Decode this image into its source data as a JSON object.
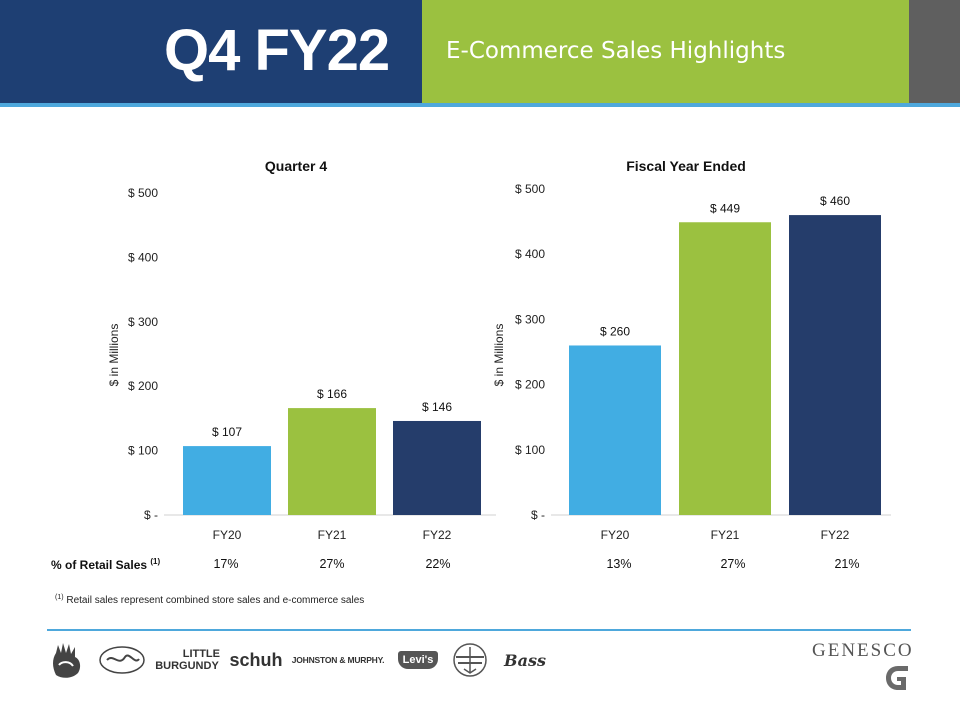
{
  "header": {
    "title": "Q4 FY22",
    "subtitle": "E-Commerce Sales Highlights"
  },
  "colors": {
    "navy": "#1e3f73",
    "green": "#9bc140",
    "gray": "#5f5f5f",
    "light_blue": "#41ade3",
    "bar_navy": "#253d6b"
  },
  "chart_data": [
    {
      "type": "bar",
      "title": "Quarter 4",
      "ylabel": "$ in Millions",
      "xlabel": "",
      "categories": [
        "FY20",
        "FY21",
        "FY22"
      ],
      "values": [
        107,
        166,
        146
      ],
      "value_labels": [
        "$ 107",
        "$ 166",
        "$ 146"
      ],
      "bar_colors": [
        "#41ade3",
        "#9bc140",
        "#253d6b"
      ],
      "ylim": [
        0,
        500
      ],
      "y_ticks": [
        0,
        100,
        200,
        300,
        400,
        500
      ],
      "y_tick_labels": [
        "$ -",
        "$ 100",
        "$ 200",
        "$ 300",
        "$ 400",
        "$ 500"
      ],
      "grid": false
    },
    {
      "type": "bar",
      "title": "Fiscal Year Ended",
      "ylabel": "$ in Millions",
      "xlabel": "",
      "categories": [
        "FY20",
        "FY21",
        "FY22"
      ],
      "values": [
        260,
        449,
        460
      ],
      "value_labels": [
        "$ 260",
        "$ 449",
        "$ 460"
      ],
      "bar_colors": [
        "#41ade3",
        "#9bc140",
        "#253d6b"
      ],
      "ylim": [
        0,
        500
      ],
      "y_ticks": [
        0,
        100,
        200,
        300,
        400,
        500
      ],
      "y_tick_labels": [
        "$ -",
        "$ 100",
        "$ 200",
        "$ 300",
        "$ 400",
        "$ 500"
      ],
      "grid": false
    }
  ],
  "retail_pct": {
    "label": "% of Retail Sales",
    "label_sup": "(1)",
    "quarter": [
      "17%",
      "27%",
      "22%"
    ],
    "fiscal": [
      "13%",
      "27%",
      "21%"
    ]
  },
  "footnote": {
    "sup": "(1)",
    "text": "Retail sales represent combined store sales and e-commerce sales"
  },
  "brands": {
    "little_line1": "LITTLE",
    "little_line2": "BURGUNDY",
    "schuh": "schuh",
    "johnston": "JOHNSTON & MURPHY.",
    "levis": "Levi's",
    "bass": "Bass"
  },
  "logo": {
    "name": "GENESCO"
  }
}
